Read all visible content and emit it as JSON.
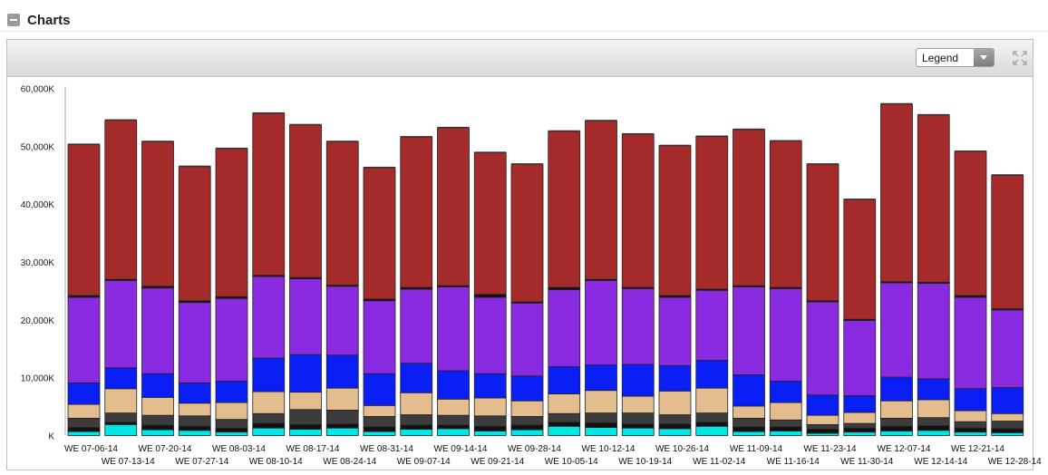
{
  "section": {
    "title": "Charts"
  },
  "toolbar": {
    "legend_label": "Legend"
  },
  "colors": {
    "header_bg": "#e0e0e0",
    "segments": [
      "#00e5e5",
      "#111111",
      "#3c3c3c",
      "#e3bd8e",
      "#0a1ff5",
      "#8a2be2",
      "#111111",
      "#a52a2a"
    ]
  },
  "chart_data": {
    "type": "bar",
    "stacked": true,
    "title": "",
    "xlabel": "",
    "ylabel": "",
    "ylim": [
      0,
      60000
    ],
    "ytick_values": [
      0,
      10000,
      20000,
      30000,
      40000,
      50000,
      60000
    ],
    "ytick_labels": [
      "K",
      "10,000K",
      "20,000K",
      "30,000K",
      "40,000K",
      "50,000K",
      "60,000K"
    ],
    "grid": false,
    "legend": "collapsed",
    "categories": [
      "WE 07-06-14",
      "WE 07-13-14",
      "WE 07-20-14",
      "WE 07-27-14",
      "WE 08-03-14",
      "WE 08-10-14",
      "WE 08-17-14",
      "WE 08-24-14",
      "WE 08-31-14",
      "WE 09-07-14",
      "WE 09-14-14",
      "WE 09-21-14",
      "WE 09-28-14",
      "WE 10-05-14",
      "WE 10-12-14",
      "WE 10-19-14",
      "WE 10-26-14",
      "WE 11-02-14",
      "WE 11-09-14",
      "WE 11-16-14",
      "WE 11-23-14",
      "WE 11-30-14",
      "WE 12-07-14",
      "WE 12-14-14",
      "WE 12-21-14",
      "WE 12-28-14"
    ],
    "series": [
      {
        "values": [
          700,
          1900,
          1000,
          900,
          600,
          1300,
          1100,
          1300,
          700,
          1100,
          1200,
          800,
          1000,
          1600,
          1400,
          1300,
          1200,
          1600,
          700,
          800,
          400,
          600,
          800,
          900,
          600,
          500
        ]
      },
      {
        "values": [
          700,
          400,
          800,
          700,
          700,
          800,
          800,
          700,
          800,
          700,
          600,
          800,
          800,
          700,
          800,
          700,
          800,
          700,
          800,
          700,
          700,
          700,
          800,
          800,
          700,
          700
        ]
      },
      {
        "values": [
          1600,
          1600,
          1700,
          1800,
          1500,
          1700,
          2600,
          2400,
          1800,
          1800,
          1700,
          1800,
          1500,
          1500,
          1700,
          1900,
          1600,
          1600,
          1500,
          1200,
          800,
          800,
          1400,
          1400,
          1100,
          1300
        ]
      },
      {
        "values": [
          2400,
          4200,
          3100,
          2200,
          2900,
          3800,
          3000,
          3800,
          1900,
          3800,
          2800,
          3100,
          2700,
          3400,
          3900,
          2900,
          4100,
          4300,
          2100,
          3000,
          1600,
          1900,
          3000,
          3100,
          1900,
          1300
        ]
      },
      {
        "values": [
          3700,
          3600,
          4100,
          3500,
          3700,
          5800,
          6500,
          5700,
          5500,
          5100,
          4900,
          4200,
          4300,
          4700,
          4400,
          5500,
          4400,
          4800,
          5400,
          3700,
          3500,
          2900,
          4100,
          3600,
          3800,
          4500
        ]
      },
      {
        "values": [
          14800,
          15100,
          14800,
          13900,
          14300,
          14100,
          13100,
          11900,
          12600,
          12800,
          14500,
          13200,
          12600,
          13300,
          14600,
          13100,
          11800,
          12100,
          15200,
          16000,
          16100,
          13000,
          16300,
          16500,
          15800,
          13400
        ]
      },
      {
        "values": [
          300,
          200,
          300,
          300,
          300,
          200,
          200,
          200,
          300,
          300,
          200,
          500,
          200,
          400,
          200,
          200,
          300,
          200,
          200,
          200,
          200,
          200,
          200,
          200,
          300,
          200
        ]
      },
      {
        "values": [
          26100,
          27500,
          25000,
          23200,
          25600,
          28000,
          26400,
          24800,
          22700,
          26000,
          27300,
          24500,
          23800,
          27000,
          27400,
          26500,
          25900,
          26400,
          27000,
          25300,
          23600,
          20700,
          30700,
          28900,
          24900,
          23100
        ]
      }
    ]
  }
}
